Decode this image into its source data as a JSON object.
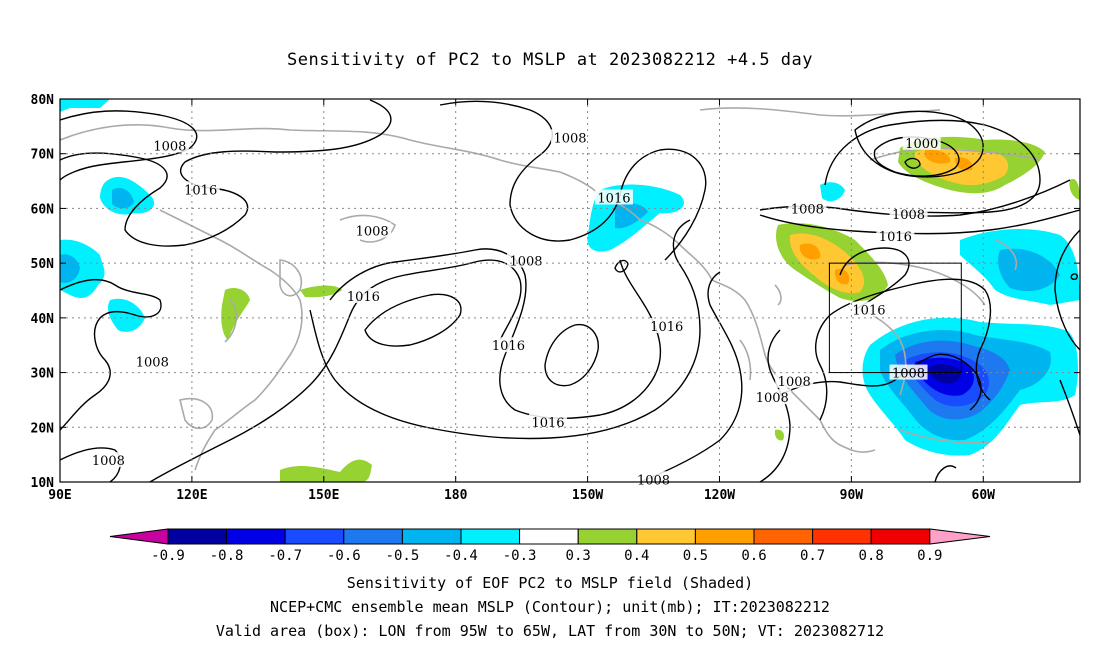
{
  "title": "Sensitivity of PC2 to MSLP at 2023082212 +4.5 day",
  "map": {
    "lon_labels": [
      "90E",
      "120E",
      "150E",
      "180",
      "150W",
      "120W",
      "90W",
      "60W"
    ],
    "lat_labels": [
      "80N",
      "70N",
      "60N",
      "50N",
      "40N",
      "30N",
      "20N",
      "10N"
    ],
    "lon_values": [
      90,
      120,
      150,
      180,
      210,
      240,
      270,
      300
    ],
    "lat_values": [
      80,
      70,
      60,
      50,
      40,
      30,
      20,
      10
    ],
    "lon_range": [
      90,
      322
    ],
    "lat_range": [
      10,
      80
    ],
    "valid_box": {
      "lon": [
        265,
        295
      ],
      "lat": [
        30,
        50
      ]
    },
    "contour_labels": [
      {
        "text": "1008",
        "lon": 115,
        "lat": 71.5
      },
      {
        "text": "1016",
        "lon": 122,
        "lat": 63.5
      },
      {
        "text": "1008",
        "lon": 161,
        "lat": 56
      },
      {
        "text": "1008",
        "lon": 206,
        "lat": 73
      },
      {
        "text": "1016",
        "lon": 216,
        "lat": 62
      },
      {
        "text": "1008",
        "lon": 196,
        "lat": 50.5
      },
      {
        "text": "1016",
        "lon": 159,
        "lat": 44
      },
      {
        "text": "1016",
        "lon": 192,
        "lat": 35
      },
      {
        "text": "1016",
        "lon": 228,
        "lat": 38.5
      },
      {
        "text": "1016",
        "lon": 201,
        "lat": 21
      },
      {
        "text": "1008",
        "lon": 111,
        "lat": 32
      },
      {
        "text": "1008",
        "lon": 101,
        "lat": 14
      },
      {
        "text": "1008",
        "lon": 225,
        "lat": 10.5
      },
      {
        "text": "1000",
        "lon": 286,
        "lat": 72
      },
      {
        "text": "1008",
        "lon": 260,
        "lat": 60
      },
      {
        "text": "1008",
        "lon": 283,
        "lat": 59
      },
      {
        "text": "1016",
        "lon": 280,
        "lat": 55
      },
      {
        "text": "1016",
        "lon": 274,
        "lat": 41.5
      },
      {
        "text": "1008",
        "lon": 257,
        "lat": 28.5
      },
      {
        "text": "1008",
        "lon": 252,
        "lat": 25.5
      },
      {
        "text": "1008",
        "lon": 283,
        "lat": 30
      }
    ]
  },
  "colorbar": {
    "labels": [
      "-0.9",
      "-0.8",
      "-0.7",
      "-0.6",
      "-0.5",
      "-0.4",
      "-0.3",
      "0.3",
      "0.4",
      "0.5",
      "0.6",
      "0.7",
      "0.8",
      "0.9"
    ],
    "colors": [
      "#0000a0",
      "#0000e6",
      "#1a4cff",
      "#1e78f0",
      "#00b4f0",
      "#00f0ff",
      "#ffffff",
      "#96d232",
      "#ffc832",
      "#ffa000",
      "#ff6400",
      "#ff3200",
      "#f00000"
    ],
    "left_extend_color": "#c800a0",
    "right_extend_color": "#ffa0c8"
  },
  "caption": {
    "line1": "Sensitivity of EOF PC2 to MSLP field (Shaded)",
    "line2": "NCEP+CMC ensemble mean MSLP (Contour); unit(mb); IT:2023082212",
    "line3": "Valid area (box): LON from 95W to 65W, LAT from 30N to 50N; VT: 2023082712"
  }
}
